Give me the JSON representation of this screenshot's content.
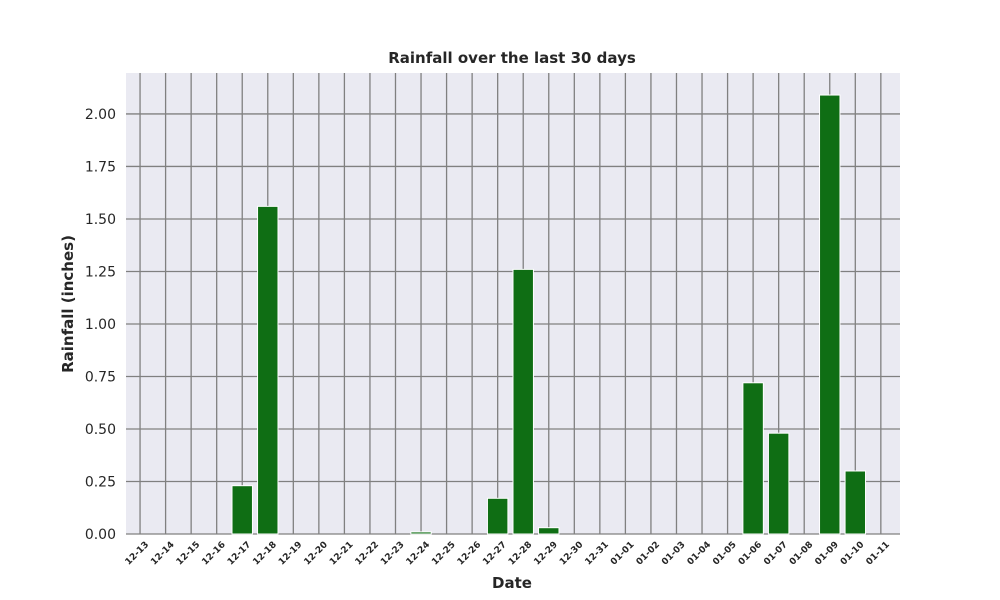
{
  "chart_data": {
    "type": "bar",
    "title": "Rainfall over the last 30 days",
    "xlabel": "Date",
    "ylabel": "Rainfall (inches)",
    "categories": [
      "12-13",
      "12-14",
      "12-15",
      "12-16",
      "12-17",
      "12-18",
      "12-19",
      "12-20",
      "12-21",
      "12-22",
      "12-23",
      "12-24",
      "12-25",
      "12-26",
      "12-27",
      "12-28",
      "12-29",
      "12-30",
      "12-31",
      "01-01",
      "01-02",
      "01-03",
      "01-04",
      "01-05",
      "01-06",
      "01-07",
      "01-08",
      "01-09",
      "01-10",
      "01-11"
    ],
    "values": [
      0,
      0,
      0,
      0,
      0.23,
      1.56,
      0,
      0,
      0,
      0,
      0,
      0.01,
      0,
      0,
      0.17,
      1.26,
      0.03,
      0,
      0,
      0,
      0,
      0,
      0,
      0,
      0.72,
      0.48,
      0,
      2.09,
      0.3,
      0
    ],
    "yticks": [
      "0.00",
      "0.25",
      "0.50",
      "0.75",
      "1.00",
      "1.25",
      "1.50",
      "1.75",
      "2.00"
    ],
    "ylim": [
      0,
      2.195
    ],
    "grid": true,
    "bar_color": "#0f6e14",
    "plot_background": "#eaeaf2",
    "grid_color": "#808080"
  }
}
